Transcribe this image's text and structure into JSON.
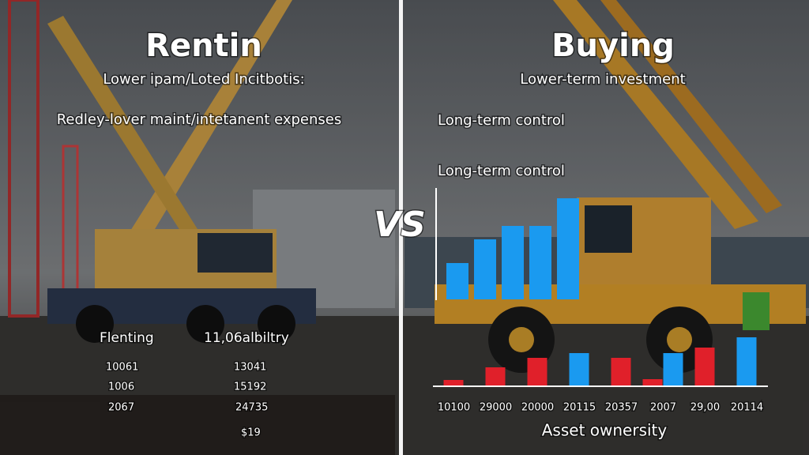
{
  "left": {
    "title": "Rentin",
    "subtitle": "Lower ipam/Loted Incitbotis:",
    "point": "Redley-lover maint/intetanent expenses",
    "table": {
      "header": [
        "Flenting",
        "11,06albiltry"
      ],
      "rows": [
        [
          "10061",
          "13041"
        ],
        [
          "1006",
          "15192"
        ],
        [
          "2067",
          "24735"
        ]
      ],
      "footer": "$19"
    }
  },
  "divider": "VS",
  "right": {
    "title": "Buying",
    "subtitle": "Lower-term investment",
    "point": "Long-term control",
    "chart_label": "Long-term control",
    "caption": "Asset ownersity"
  },
  "chart_data": [
    {
      "type": "bar",
      "color": "#1a9af0",
      "values": [
        46,
        76,
        93,
        93,
        128
      ],
      "ylim": [
        0,
        140
      ]
    },
    {
      "type": "bar",
      "categories": [
        "10100",
        "29000",
        "20000",
        "20115",
        "20357",
        "2007",
        "29,00",
        "20114"
      ],
      "ylim": [
        0,
        70
      ],
      "series": [
        {
          "color": "#e0202a",
          "values": [
            7,
            23,
            35,
            null,
            35,
            8,
            48,
            null
          ]
        },
        {
          "color": "#1a9af0",
          "values": [
            null,
            null,
            null,
            41,
            null,
            41,
            null,
            61
          ]
        }
      ]
    }
  ]
}
